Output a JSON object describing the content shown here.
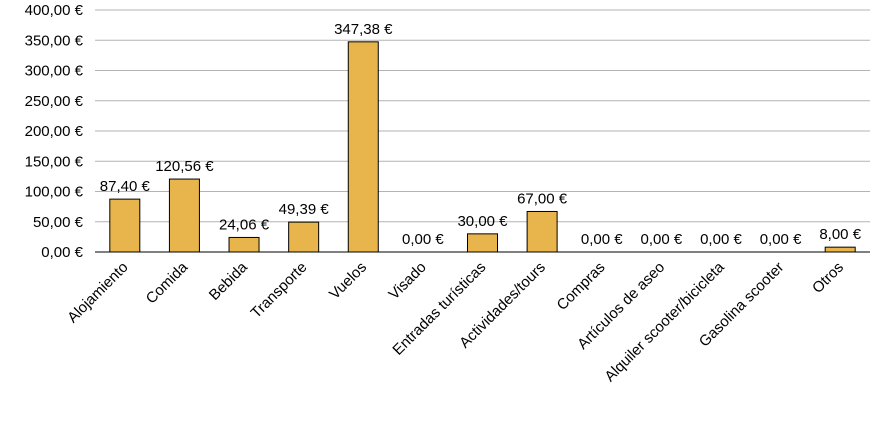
{
  "chart_data": {
    "type": "bar",
    "categories": [
      "Alojamiento",
      "Comida",
      "Bebida",
      "Transporte",
      "Vuelos",
      "Visado",
      "Entradas turísticas",
      "Actividades/tours",
      "Compras",
      "Artículos de aseo",
      "Alquiler scooter/bicicleta",
      "Gasolina scooter",
      "Otros"
    ],
    "values": [
      87.4,
      120.56,
      24.06,
      49.39,
      347.38,
      0.0,
      30.0,
      67.0,
      0.0,
      0.0,
      0.0,
      0.0,
      8.0
    ],
    "data_labels": [
      "87,40 €",
      "120,56 €",
      "24,06 €",
      "49,39 €",
      "347,38 €",
      "0,00 €",
      "30,00 €",
      "67,00 €",
      "0,00 €",
      "0,00 €",
      "0,00 €",
      "0,00 €",
      "8,00 €"
    ],
    "yticks": [
      0,
      50,
      100,
      150,
      200,
      250,
      300,
      350,
      400
    ],
    "ytick_labels": [
      "0,00 €",
      "50,00 €",
      "100,00 €",
      "150,00 €",
      "200,00 €",
      "250,00 €",
      "300,00 €",
      "350,00 €",
      "400,00 €"
    ],
    "ylim": [
      0,
      400
    ],
    "grid": true,
    "legend": "none",
    "title": "",
    "xlabel": "",
    "ylabel": "",
    "colors": {
      "bar_fill": "#e8b54c",
      "bar_stroke": "#000000",
      "grid": "#b3b3b3",
      "axis": "#000000"
    }
  }
}
